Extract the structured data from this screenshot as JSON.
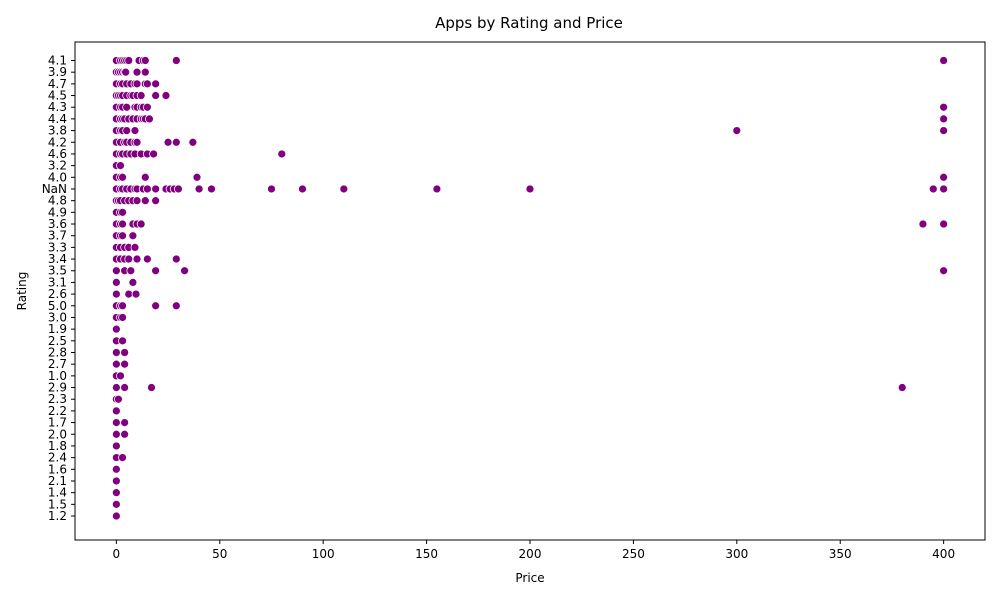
{
  "chart_data": {
    "type": "scatter",
    "title": "Apps by Rating and Price",
    "xlabel": "Price",
    "ylabel": "Rating",
    "xlim": [
      -20,
      420
    ],
    "x_ticks": [
      0,
      50,
      100,
      150,
      200,
      250,
      300,
      350,
      400
    ],
    "y_categories": [
      "4.1",
      "3.9",
      "4.7",
      "4.5",
      "4.3",
      "4.4",
      "3.8",
      "4.2",
      "4.6",
      "3.2",
      "4.0",
      "NaN",
      "4.8",
      "4.9",
      "3.6",
      "3.7",
      "3.3",
      "3.4",
      "3.5",
      "3.1",
      "2.6",
      "5.0",
      "3.0",
      "1.9",
      "2.5",
      "2.8",
      "2.7",
      "1.0",
      "2.9",
      "2.3",
      "2.2",
      "1.7",
      "2.0",
      "1.8",
      "2.4",
      "1.6",
      "2.1",
      "1.4",
      "1.5",
      "1.2"
    ],
    "marker_color": "#800080",
    "grid": false,
    "points": [
      {
        "x": 0,
        "y": "4.1"
      },
      {
        "x": 1.99,
        "y": "4.1"
      },
      {
        "x": 2.99,
        "y": "4.1"
      },
      {
        "x": 3.99,
        "y": "4.1"
      },
      {
        "x": 4.99,
        "y": "4.1"
      },
      {
        "x": 5.99,
        "y": "4.1"
      },
      {
        "x": 10.99,
        "y": "4.1"
      },
      {
        "x": 12.99,
        "y": "4.1"
      },
      {
        "x": 13.99,
        "y": "4.1"
      },
      {
        "x": 28.99,
        "y": "4.1"
      },
      {
        "x": 399.99,
        "y": "4.1"
      },
      {
        "x": 0,
        "y": "3.9"
      },
      {
        "x": 0.99,
        "y": "3.9"
      },
      {
        "x": 1.99,
        "y": "3.9"
      },
      {
        "x": 2.99,
        "y": "3.9"
      },
      {
        "x": 3.99,
        "y": "3.9"
      },
      {
        "x": 4.49,
        "y": "3.9"
      },
      {
        "x": 9.99,
        "y": "3.9"
      },
      {
        "x": 13.99,
        "y": "3.9"
      },
      {
        "x": 0,
        "y": "4.7"
      },
      {
        "x": 1.99,
        "y": "4.7"
      },
      {
        "x": 2.99,
        "y": "4.7"
      },
      {
        "x": 4.99,
        "y": "4.7"
      },
      {
        "x": 6.99,
        "y": "4.7"
      },
      {
        "x": 8.99,
        "y": "4.7"
      },
      {
        "x": 9.99,
        "y": "4.7"
      },
      {
        "x": 13.99,
        "y": "4.7"
      },
      {
        "x": 14.99,
        "y": "4.7"
      },
      {
        "x": 18.99,
        "y": "4.7"
      },
      {
        "x": 0,
        "y": "4.5"
      },
      {
        "x": 0.99,
        "y": "4.5"
      },
      {
        "x": 1.99,
        "y": "4.5"
      },
      {
        "x": 2.99,
        "y": "4.5"
      },
      {
        "x": 4.99,
        "y": "4.5"
      },
      {
        "x": 6.99,
        "y": "4.5"
      },
      {
        "x": 7.99,
        "y": "4.5"
      },
      {
        "x": 9.99,
        "y": "4.5"
      },
      {
        "x": 11.99,
        "y": "4.5"
      },
      {
        "x": 18.99,
        "y": "4.5"
      },
      {
        "x": 23.99,
        "y": "4.5"
      },
      {
        "x": 0,
        "y": "4.3"
      },
      {
        "x": 1.99,
        "y": "4.3"
      },
      {
        "x": 2.99,
        "y": "4.3"
      },
      {
        "x": 4.99,
        "y": "4.3"
      },
      {
        "x": 8.99,
        "y": "4.3"
      },
      {
        "x": 9.99,
        "y": "4.3"
      },
      {
        "x": 11.99,
        "y": "4.3"
      },
      {
        "x": 12.99,
        "y": "4.3"
      },
      {
        "x": 14.99,
        "y": "4.3"
      },
      {
        "x": 399.99,
        "y": "4.3"
      },
      {
        "x": 0,
        "y": "4.4"
      },
      {
        "x": 1.99,
        "y": "4.4"
      },
      {
        "x": 2.99,
        "y": "4.4"
      },
      {
        "x": 3.99,
        "y": "4.4"
      },
      {
        "x": 5.99,
        "y": "4.4"
      },
      {
        "x": 7.99,
        "y": "4.4"
      },
      {
        "x": 9.99,
        "y": "4.4"
      },
      {
        "x": 11.99,
        "y": "4.4"
      },
      {
        "x": 12.99,
        "y": "4.4"
      },
      {
        "x": 13.99,
        "y": "4.4"
      },
      {
        "x": 15.99,
        "y": "4.4"
      },
      {
        "x": 399.99,
        "y": "4.4"
      },
      {
        "x": 0,
        "y": "3.8"
      },
      {
        "x": 1.99,
        "y": "3.8"
      },
      {
        "x": 2.99,
        "y": "3.8"
      },
      {
        "x": 4.99,
        "y": "3.8"
      },
      {
        "x": 8.99,
        "y": "3.8"
      },
      {
        "x": 299.99,
        "y": "3.8"
      },
      {
        "x": 399.99,
        "y": "3.8"
      },
      {
        "x": 0,
        "y": "4.2"
      },
      {
        "x": 1.99,
        "y": "4.2"
      },
      {
        "x": 3.99,
        "y": "4.2"
      },
      {
        "x": 4.99,
        "y": "4.2"
      },
      {
        "x": 6.99,
        "y": "4.2"
      },
      {
        "x": 8.99,
        "y": "4.2"
      },
      {
        "x": 9.99,
        "y": "4.2"
      },
      {
        "x": 24.99,
        "y": "4.2"
      },
      {
        "x": 28.99,
        "y": "4.2"
      },
      {
        "x": 36.99,
        "y": "4.2"
      },
      {
        "x": 0,
        "y": "4.6"
      },
      {
        "x": 1.99,
        "y": "4.6"
      },
      {
        "x": 2.99,
        "y": "4.6"
      },
      {
        "x": 4.99,
        "y": "4.6"
      },
      {
        "x": 6.99,
        "y": "4.6"
      },
      {
        "x": 8.99,
        "y": "4.6"
      },
      {
        "x": 11.99,
        "y": "4.6"
      },
      {
        "x": 14.99,
        "y": "4.6"
      },
      {
        "x": 17.99,
        "y": "4.6"
      },
      {
        "x": 79.99,
        "y": "4.6"
      },
      {
        "x": 0,
        "y": "3.2"
      },
      {
        "x": 1.99,
        "y": "3.2"
      },
      {
        "x": 0,
        "y": "4.0"
      },
      {
        "x": 1.99,
        "y": "4.0"
      },
      {
        "x": 2.99,
        "y": "4.0"
      },
      {
        "x": 13.99,
        "y": "4.0"
      },
      {
        "x": 38.99,
        "y": "4.0"
      },
      {
        "x": 399.99,
        "y": "4.0"
      },
      {
        "x": 0,
        "y": "NaN"
      },
      {
        "x": 1.99,
        "y": "NaN"
      },
      {
        "x": 2.99,
        "y": "NaN"
      },
      {
        "x": 4.99,
        "y": "NaN"
      },
      {
        "x": 6.99,
        "y": "NaN"
      },
      {
        "x": 8.99,
        "y": "NaN"
      },
      {
        "x": 9.99,
        "y": "NaN"
      },
      {
        "x": 12.99,
        "y": "NaN"
      },
      {
        "x": 14.99,
        "y": "NaN"
      },
      {
        "x": 18.99,
        "y": "NaN"
      },
      {
        "x": 23.99,
        "y": "NaN"
      },
      {
        "x": 25.99,
        "y": "NaN"
      },
      {
        "x": 27.99,
        "y": "NaN"
      },
      {
        "x": 29.99,
        "y": "NaN"
      },
      {
        "x": 39.99,
        "y": "NaN"
      },
      {
        "x": 45.99,
        "y": "NaN"
      },
      {
        "x": 74.99,
        "y": "NaN"
      },
      {
        "x": 89.99,
        "y": "NaN"
      },
      {
        "x": 109.99,
        "y": "NaN"
      },
      {
        "x": 154.99,
        "y": "NaN"
      },
      {
        "x": 199.99,
        "y": "NaN"
      },
      {
        "x": 394.99,
        "y": "NaN"
      },
      {
        "x": 399.99,
        "y": "NaN"
      },
      {
        "x": 0,
        "y": "4.8"
      },
      {
        "x": 0.99,
        "y": "4.8"
      },
      {
        "x": 1.99,
        "y": "4.8"
      },
      {
        "x": 3.99,
        "y": "4.8"
      },
      {
        "x": 5.99,
        "y": "4.8"
      },
      {
        "x": 7.99,
        "y": "4.8"
      },
      {
        "x": 9.99,
        "y": "4.8"
      },
      {
        "x": 13.99,
        "y": "4.8"
      },
      {
        "x": 18.99,
        "y": "4.8"
      },
      {
        "x": 0,
        "y": "4.9"
      },
      {
        "x": 1.99,
        "y": "4.9"
      },
      {
        "x": 2.99,
        "y": "4.9"
      },
      {
        "x": 0,
        "y": "3.6"
      },
      {
        "x": 1.99,
        "y": "3.6"
      },
      {
        "x": 2.99,
        "y": "3.6"
      },
      {
        "x": 7.99,
        "y": "3.6"
      },
      {
        "x": 9.99,
        "y": "3.6"
      },
      {
        "x": 11.99,
        "y": "3.6"
      },
      {
        "x": 389.99,
        "y": "3.6"
      },
      {
        "x": 400,
        "y": "3.6"
      },
      {
        "x": 0,
        "y": "3.7"
      },
      {
        "x": 1.99,
        "y": "3.7"
      },
      {
        "x": 2.99,
        "y": "3.7"
      },
      {
        "x": 7.99,
        "y": "3.7"
      },
      {
        "x": 0,
        "y": "3.3"
      },
      {
        "x": 1.99,
        "y": "3.3"
      },
      {
        "x": 3.99,
        "y": "3.3"
      },
      {
        "x": 5.99,
        "y": "3.3"
      },
      {
        "x": 8.99,
        "y": "3.3"
      },
      {
        "x": 0,
        "y": "3.4"
      },
      {
        "x": 1.99,
        "y": "3.4"
      },
      {
        "x": 3.99,
        "y": "3.4"
      },
      {
        "x": 5.99,
        "y": "3.4"
      },
      {
        "x": 9.99,
        "y": "3.4"
      },
      {
        "x": 14.99,
        "y": "3.4"
      },
      {
        "x": 28.99,
        "y": "3.4"
      },
      {
        "x": 0,
        "y": "3.5"
      },
      {
        "x": 3.99,
        "y": "3.5"
      },
      {
        "x": 6.99,
        "y": "3.5"
      },
      {
        "x": 18.99,
        "y": "3.5"
      },
      {
        "x": 32.99,
        "y": "3.5"
      },
      {
        "x": 399.99,
        "y": "3.5"
      },
      {
        "x": 0,
        "y": "3.1"
      },
      {
        "x": 7.99,
        "y": "3.1"
      },
      {
        "x": 0,
        "y": "2.6"
      },
      {
        "x": 5.99,
        "y": "2.6"
      },
      {
        "x": 9.49,
        "y": "2.6"
      },
      {
        "x": 0,
        "y": "5.0"
      },
      {
        "x": 1.99,
        "y": "5.0"
      },
      {
        "x": 2.99,
        "y": "5.0"
      },
      {
        "x": 18.99,
        "y": "5.0"
      },
      {
        "x": 28.99,
        "y": "5.0"
      },
      {
        "x": 0,
        "y": "3.0"
      },
      {
        "x": 1.99,
        "y": "3.0"
      },
      {
        "x": 2.99,
        "y": "3.0"
      },
      {
        "x": 0,
        "y": "1.9"
      },
      {
        "x": 0,
        "y": "2.5"
      },
      {
        "x": 2.99,
        "y": "2.5"
      },
      {
        "x": 0,
        "y": "2.8"
      },
      {
        "x": 3.99,
        "y": "2.8"
      },
      {
        "x": 0,
        "y": "2.7"
      },
      {
        "x": 3.99,
        "y": "2.7"
      },
      {
        "x": 0,
        "y": "1.0"
      },
      {
        "x": 1.99,
        "y": "1.0"
      },
      {
        "x": 0,
        "y": "2.9"
      },
      {
        "x": 3.99,
        "y": "2.9"
      },
      {
        "x": 16.99,
        "y": "2.9"
      },
      {
        "x": 379.99,
        "y": "2.9"
      },
      {
        "x": 0,
        "y": "2.3"
      },
      {
        "x": 0.99,
        "y": "2.3"
      },
      {
        "x": 0,
        "y": "2.2"
      },
      {
        "x": 0,
        "y": "1.7"
      },
      {
        "x": 3.99,
        "y": "1.7"
      },
      {
        "x": 0,
        "y": "2.0"
      },
      {
        "x": 3.99,
        "y": "2.0"
      },
      {
        "x": 0,
        "y": "1.8"
      },
      {
        "x": 0,
        "y": "2.4"
      },
      {
        "x": 2.99,
        "y": "2.4"
      },
      {
        "x": 0,
        "y": "1.6"
      },
      {
        "x": 0,
        "y": "2.1"
      },
      {
        "x": 0,
        "y": "1.4"
      },
      {
        "x": 0,
        "y": "1.5"
      },
      {
        "x": 0,
        "y": "1.2"
      }
    ]
  }
}
